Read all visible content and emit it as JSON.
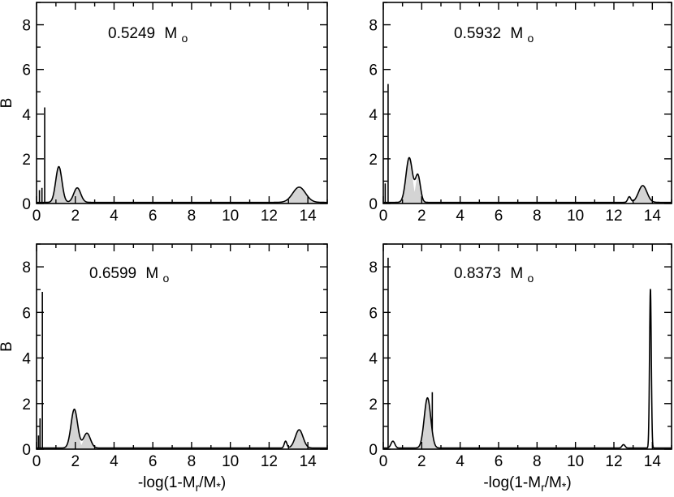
{
  "chart_data": [
    {
      "type": "line",
      "label_value": "0.5249",
      "label_unit": "M",
      "label_sub": "o",
      "xlabel": "",
      "ylabel": "B",
      "xlim": [
        0,
        15
      ],
      "ylim": [
        0,
        9
      ],
      "xticks": [
        "0",
        "2",
        "4",
        "6",
        "8",
        "10",
        "12",
        "14"
      ],
      "yticks": [
        "0",
        "2",
        "4",
        "6",
        "8"
      ],
      "spikes": [
        {
          "x": 0.15,
          "y": 0.6
        },
        {
          "x": 0.28,
          "y": 0.7
        },
        {
          "x": 0.42,
          "y": 4.3
        }
      ],
      "peaks": [
        {
          "center": 1.15,
          "height": 1.6,
          "width": 0.16,
          "filled": true
        },
        {
          "center": 2.1,
          "height": 0.65,
          "width": 0.18,
          "filled": true
        },
        {
          "center": 13.55,
          "height": 0.68,
          "width": 0.33,
          "filled": true
        }
      ],
      "baseline": 0.05
    },
    {
      "type": "line",
      "label_value": "0.5932",
      "label_unit": "M",
      "label_sub": "o",
      "xlabel": "",
      "ylabel": "",
      "xlim": [
        0,
        15
      ],
      "ylim": [
        0,
        9
      ],
      "xticks": [
        "0",
        "2",
        "4",
        "6",
        "8",
        "10",
        "12",
        "14"
      ],
      "yticks": [
        "0",
        "2",
        "4",
        "6",
        "8"
      ],
      "spikes": [
        {
          "x": 0.1,
          "y": 0.9
        },
        {
          "x": 0.25,
          "y": 5.35
        }
      ],
      "peaks": [
        {
          "center": 1.35,
          "height": 2.0,
          "width": 0.17,
          "filled": true
        },
        {
          "center": 1.8,
          "height": 1.2,
          "width": 0.13,
          "filled": true
        },
        {
          "center": 12.8,
          "height": 0.25,
          "width": 0.08,
          "filled": false
        },
        {
          "center": 13.5,
          "height": 0.75,
          "width": 0.22,
          "filled": true
        }
      ],
      "baseline": 0.05
    },
    {
      "type": "line",
      "label_value": "0.6599",
      "label_unit": "M",
      "label_sub": "o",
      "xlabel": "-log(1-Mr/M*)",
      "ylabel": "B",
      "xlim": [
        0,
        15
      ],
      "ylim": [
        0,
        9
      ],
      "xticks": [
        "0",
        "2",
        "4",
        "6",
        "8",
        "10",
        "12",
        "14"
      ],
      "yticks": [
        "0",
        "2",
        "4",
        "6",
        "8"
      ],
      "spikes": [
        {
          "x": 0.1,
          "y": 0.6
        },
        {
          "x": 0.18,
          "y": 1.35
        },
        {
          "x": 0.3,
          "y": 6.9
        }
      ],
      "peaks": [
        {
          "center": 1.95,
          "height": 1.7,
          "width": 0.17,
          "filled": true
        },
        {
          "center": 2.6,
          "height": 0.65,
          "width": 0.18,
          "filled": true
        },
        {
          "center": 12.85,
          "height": 0.3,
          "width": 0.07,
          "filled": false
        },
        {
          "center": 13.55,
          "height": 0.8,
          "width": 0.2,
          "filled": true
        }
      ],
      "baseline": 0.05
    },
    {
      "type": "line",
      "label_value": "0.8373",
      "label_unit": "M",
      "label_sub": "o",
      "xlabel": "-log(1-Mr/M*)",
      "ylabel": "",
      "xlim": [
        0,
        15
      ],
      "ylim": [
        0,
        9
      ],
      "xticks": [
        "0",
        "2",
        "4",
        "6",
        "8",
        "10",
        "12",
        "14"
      ],
      "yticks": [
        "0",
        "2",
        "4",
        "6",
        "8"
      ],
      "spikes": [
        {
          "x": 0.25,
          "y": 8.4
        },
        {
          "x": 2.55,
          "y": 2.5
        }
      ],
      "peaks": [
        {
          "center": 0.5,
          "height": 0.3,
          "width": 0.1,
          "filled": false
        },
        {
          "center": 2.3,
          "height": 2.2,
          "width": 0.17,
          "filled": true
        },
        {
          "center": 12.5,
          "height": 0.15,
          "width": 0.08,
          "filled": false
        },
        {
          "center": 13.9,
          "height": 7.0,
          "width": 0.045,
          "filled": false
        }
      ],
      "baseline": 0.05
    }
  ]
}
